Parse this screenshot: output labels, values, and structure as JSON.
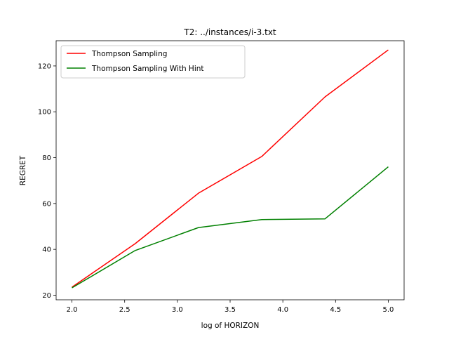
{
  "chart_data": {
    "type": "line",
    "title": "T2: ../instances/i-3.txt",
    "xlabel": "log of HORIZON",
    "ylabel": "REGRET",
    "xlim": [
      1.85,
      5.15
    ],
    "ylim": [
      18,
      131
    ],
    "x_ticks": [
      2.0,
      2.5,
      3.0,
      3.5,
      4.0,
      4.5,
      5.0
    ],
    "y_ticks": [
      20,
      40,
      60,
      80,
      100,
      120
    ],
    "grid": false,
    "legend_position": "upper left",
    "x": [
      2.0,
      2.6,
      3.2,
      3.8,
      4.4,
      5.0
    ],
    "series": [
      {
        "name": "Thompson Sampling",
        "color": "#ff0000",
        "values": [
          23.5,
          42.5,
          64.5,
          80.5,
          106.5,
          127.0
        ]
      },
      {
        "name": "Thompson Sampling With Hint",
        "color": "#008000",
        "values": [
          23.2,
          39.5,
          49.5,
          53.0,
          53.3,
          76.0
        ]
      }
    ]
  }
}
